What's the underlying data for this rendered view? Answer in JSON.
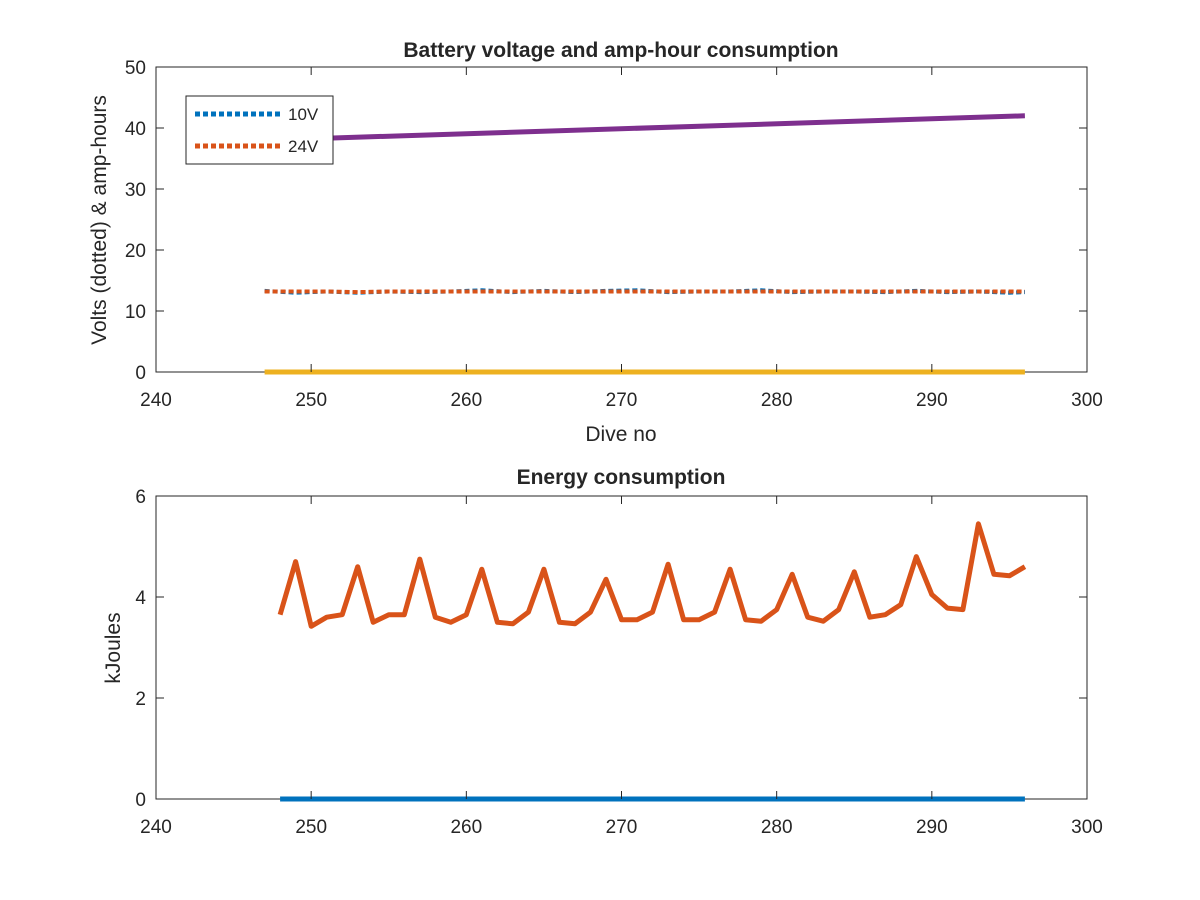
{
  "chart_data": [
    {
      "type": "line",
      "title": "Battery voltage and amp-hour consumption",
      "xlabel": "Dive no",
      "ylabel": "Volts (dotted) & amp-hours",
      "xlim": [
        240,
        300
      ],
      "ylim": [
        0,
        50
      ],
      "xticks": [
        "240",
        "250",
        "260",
        "270",
        "280",
        "290",
        "300"
      ],
      "yticks": [
        "0",
        "10",
        "20",
        "30",
        "40",
        "50"
      ],
      "grid": false,
      "legend_position": "top-left",
      "series": [
        {
          "name": "10V",
          "color": "#0072BD",
          "style": "dotted",
          "x": [
            247,
            249,
            251,
            253,
            255,
            257,
            259,
            261,
            263,
            265,
            267,
            269,
            271,
            273,
            275,
            277,
            279,
            281,
            283,
            285,
            287,
            289,
            291,
            293,
            295,
            296
          ],
          "y": [
            13.3,
            13.0,
            13.2,
            13.0,
            13.2,
            13.1,
            13.2,
            13.4,
            13.1,
            13.3,
            13.1,
            13.3,
            13.4,
            13.1,
            13.2,
            13.2,
            13.4,
            13.1,
            13.2,
            13.2,
            13.1,
            13.3,
            13.1,
            13.2,
            13.0,
            13.1
          ]
        },
        {
          "name": "24V",
          "color": "#D95319",
          "style": "dotted",
          "x": [
            247,
            249,
            251,
            253,
            255,
            257,
            259,
            261,
            263,
            265,
            267,
            269,
            271,
            273,
            275,
            277,
            279,
            281,
            283,
            285,
            287,
            289,
            291,
            293,
            295,
            296
          ],
          "y": [
            13.2,
            13.2,
            13.2,
            13.1,
            13.2,
            13.2,
            13.2,
            13.2,
            13.2,
            13.2,
            13.2,
            13.2,
            13.2,
            13.2,
            13.2,
            13.2,
            13.2,
            13.2,
            13.2,
            13.2,
            13.2,
            13.2,
            13.2,
            13.2,
            13.2,
            13.2
          ]
        },
        {
          "color": "#EDB120",
          "style": "solid",
          "x": [
            247,
            296
          ],
          "y": [
            0,
            0
          ]
        },
        {
          "color": "#7E2F8E",
          "style": "solid",
          "x": [
            247,
            296
          ],
          "y": [
            38.0,
            42.0
          ]
        }
      ]
    },
    {
      "type": "line",
      "title": "Energy consumption",
      "xlabel": "",
      "ylabel": "kJoules",
      "xlim": [
        240,
        300
      ],
      "ylim": [
        0,
        6
      ],
      "xticks": [
        "240",
        "250",
        "260",
        "270",
        "280",
        "290",
        "300"
      ],
      "yticks": [
        "0",
        "2",
        "4",
        "6"
      ],
      "grid": false,
      "series": [
        {
          "color": "#0072BD",
          "style": "solid",
          "x": [
            248,
            296
          ],
          "y": [
            0,
            0
          ]
        },
        {
          "color": "#D95319",
          "style": "solid",
          "x": [
            248,
            249,
            250,
            251,
            252,
            253,
            254,
            255,
            256,
            257,
            258,
            259,
            260,
            261,
            262,
            263,
            264,
            265,
            266,
            267,
            268,
            269,
            270,
            271,
            272,
            273,
            274,
            275,
            276,
            277,
            278,
            279,
            280,
            281,
            282,
            283,
            284,
            285,
            286,
            287,
            288,
            289,
            290,
            291,
            292,
            293,
            294,
            295,
            296
          ],
          "y": [
            3.65,
            4.7,
            3.42,
            3.6,
            3.65,
            4.6,
            3.5,
            3.65,
            3.65,
            4.75,
            3.6,
            3.5,
            3.65,
            4.55,
            3.5,
            3.47,
            3.7,
            4.55,
            3.5,
            3.47,
            3.7,
            4.35,
            3.55,
            3.55,
            3.7,
            4.65,
            3.55,
            3.55,
            3.7,
            4.55,
            3.55,
            3.52,
            3.75,
            4.45,
            3.6,
            3.52,
            3.75,
            4.5,
            3.6,
            3.65,
            3.85,
            4.8,
            4.05,
            3.78,
            3.75,
            5.45,
            4.45,
            4.42,
            4.6
          ]
        }
      ]
    }
  ]
}
